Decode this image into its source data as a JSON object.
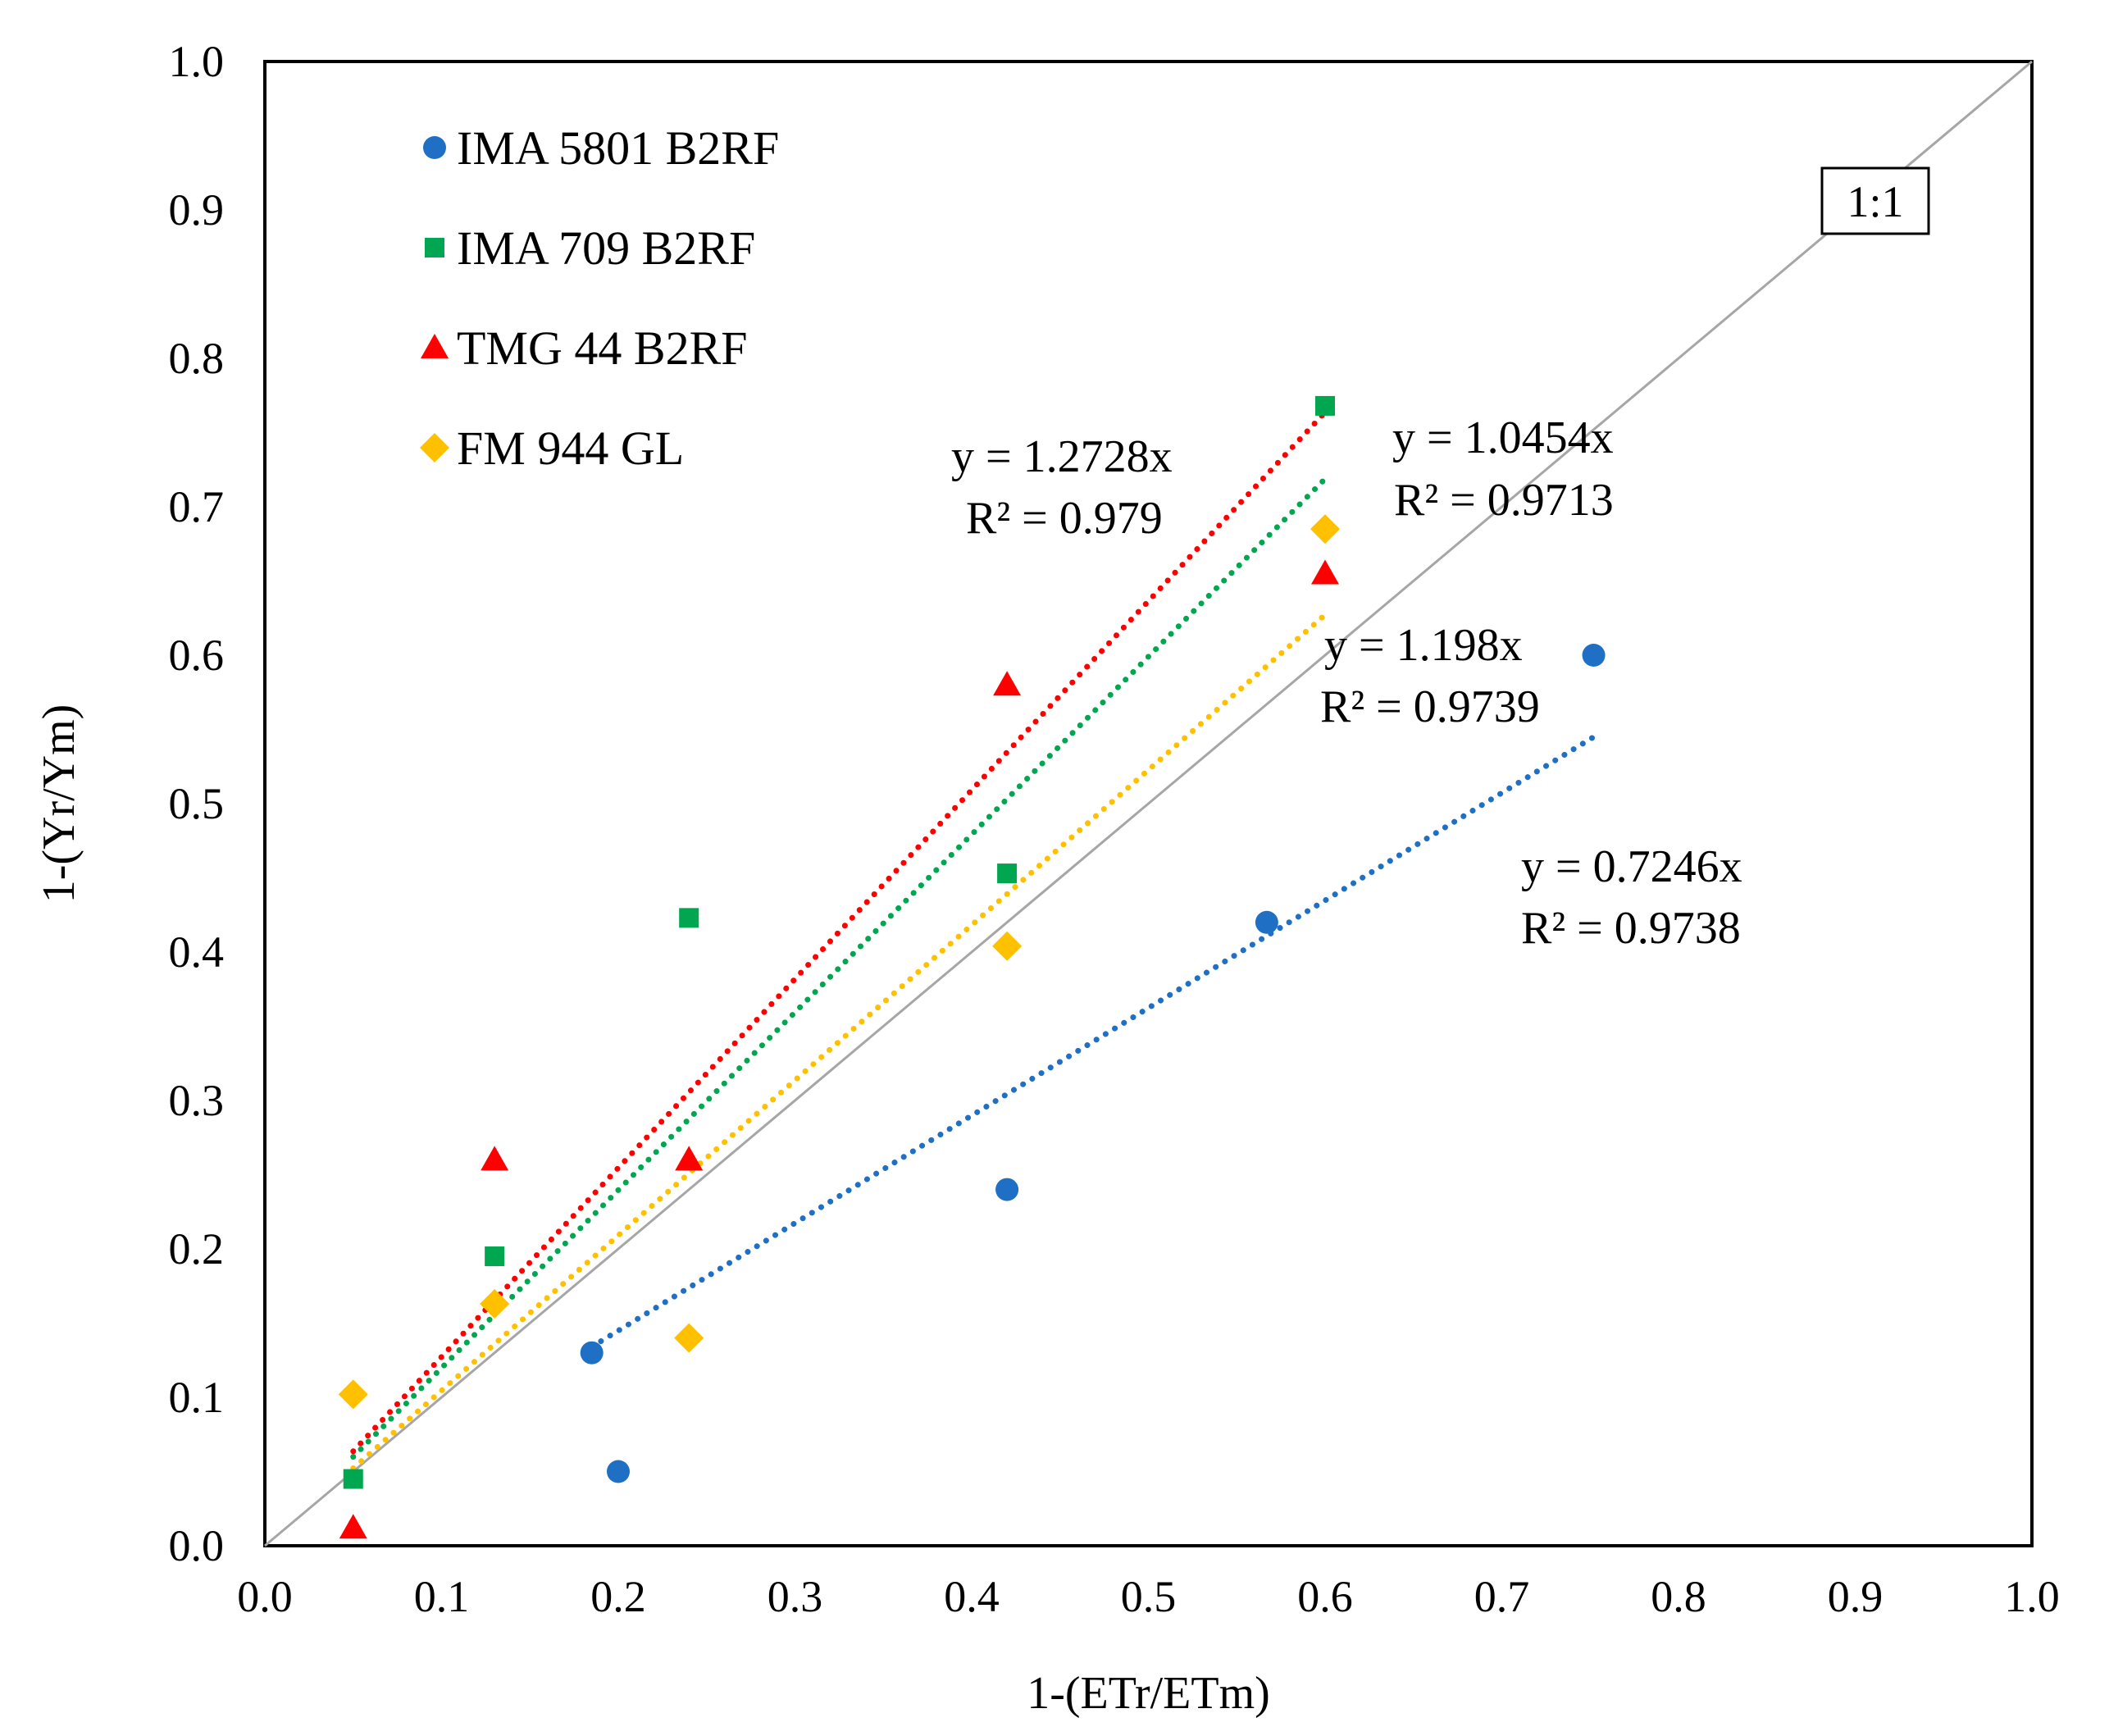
{
  "chart_data": {
    "type": "scatter",
    "xlabel": "1-(ETr/ETm)",
    "ylabel": "1-(Yr/Ym)",
    "xlim": [
      0,
      1
    ],
    "ylim": [
      0,
      1
    ],
    "xticks": [
      "0.0",
      "0.1",
      "0.2",
      "0.3",
      "0.4",
      "0.5",
      "0.6",
      "0.7",
      "0.8",
      "0.9",
      "1.0"
    ],
    "yticks": [
      "0.0",
      "0.1",
      "0.2",
      "0.3",
      "0.4",
      "0.5",
      "0.6",
      "0.7",
      "0.8",
      "0.9",
      "1.0"
    ],
    "grid": false,
    "legend_position": "top-left",
    "reference_line": {
      "label": "1:1",
      "slope": 1
    },
    "series": [
      {
        "name": "IMA 5801 B2RF",
        "marker": "circle",
        "color": "#1f6fc5",
        "points": [
          [
            0.185,
            0.13
          ],
          [
            0.2,
            0.05
          ],
          [
            0.42,
            0.24
          ],
          [
            0.567,
            0.42
          ],
          [
            0.752,
            0.6
          ]
        ],
        "trendline": {
          "slope": 0.7246,
          "x_range": [
            0.185,
            0.752
          ],
          "equation": "y = 0.7246x",
          "r2": "R² = 0.9738"
        }
      },
      {
        "name": "IMA 709 B2RF",
        "marker": "square",
        "color": "#00a650",
        "points": [
          [
            0.05,
            0.045
          ],
          [
            0.13,
            0.195
          ],
          [
            0.24,
            0.423
          ],
          [
            0.42,
            0.453
          ],
          [
            0.6,
            0.768
          ]
        ],
        "trendline": {
          "slope": 1.198,
          "x_range": [
            0.05,
            0.6
          ],
          "equation": "y = 1.198x",
          "r2": "R² = 0.9739"
        }
      },
      {
        "name": "TMG 44 B2RF",
        "marker": "triangle",
        "color": "#ff0000",
        "points": [
          [
            0.05,
            0.012
          ],
          [
            0.13,
            0.26
          ],
          [
            0.24,
            0.26
          ],
          [
            0.42,
            0.58
          ],
          [
            0.6,
            0.655
          ]
        ],
        "trendline": {
          "slope": 1.2728,
          "x_range": [
            0.05,
            0.6
          ],
          "equation": "y = 1.2728x",
          "r2": "R² = 0.979"
        }
      },
      {
        "name": "FM 944 GL",
        "marker": "diamond",
        "color": "#ffc000",
        "points": [
          [
            0.05,
            0.102
          ],
          [
            0.13,
            0.163
          ],
          [
            0.24,
            0.14
          ],
          [
            0.42,
            0.404
          ],
          [
            0.6,
            0.685
          ]
        ],
        "trendline": {
          "slope": 1.0454,
          "x_range": [
            0.05,
            0.6
          ],
          "equation": "y = 1.0454x",
          "r2": "R² = 0.9713"
        }
      }
    ]
  }
}
